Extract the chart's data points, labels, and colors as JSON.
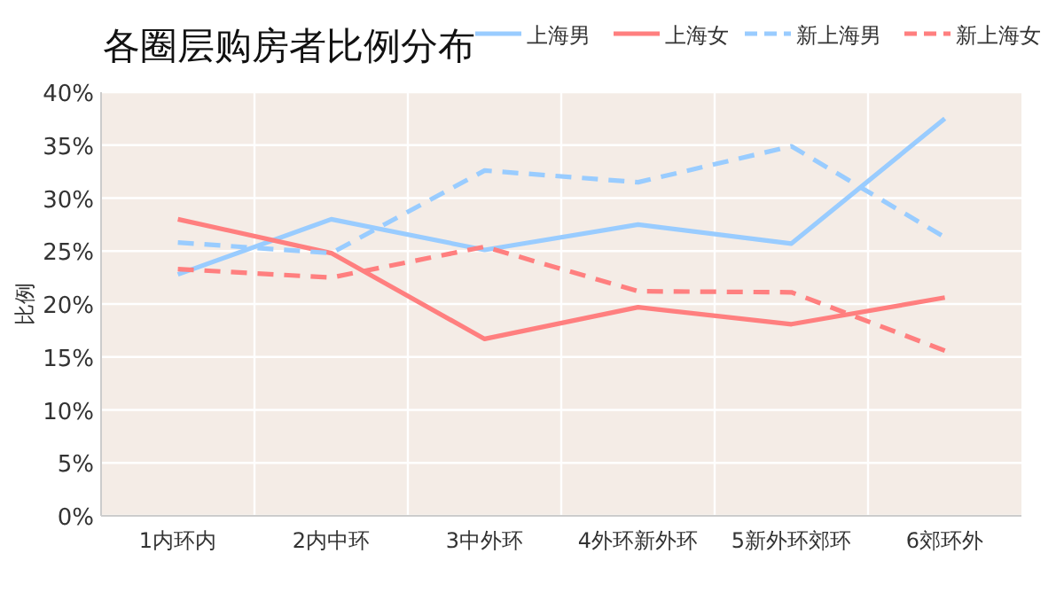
{
  "chart_data": {
    "type": "line",
    "title": "各圈层购房者比例分布",
    "ylabel": "比例",
    "categories": [
      "1内环内",
      "2内中环",
      "3中外环",
      "4外环新外环",
      "5新外环郊环",
      "6郊环外"
    ],
    "series": [
      {
        "name": "上海男",
        "color": "#99ccff",
        "line_style": "solid",
        "values": [
          22.8,
          28.0,
          25.1,
          27.5,
          25.7,
          37.5
        ]
      },
      {
        "name": "上海女",
        "color": "#ff7f7f",
        "line_style": "solid",
        "values": [
          28.0,
          24.8,
          16.7,
          19.7,
          18.1,
          20.6
        ]
      },
      {
        "name": "新上海男",
        "color": "#99ccff",
        "line_style": "dashed",
        "values": [
          25.8,
          24.8,
          32.6,
          31.5,
          34.9,
          26.3
        ]
      },
      {
        "name": "新上海女",
        "color": "#ff7f7f",
        "line_style": "dashed",
        "values": [
          23.3,
          22.5,
          25.4,
          21.2,
          21.1,
          15.6
        ]
      }
    ],
    "ylim": [
      0,
      40
    ],
    "yticks": [
      {
        "value": 0,
        "label": "0%"
      },
      {
        "value": 5,
        "label": "5%"
      },
      {
        "value": 10,
        "label": "10%"
      },
      {
        "value": 15,
        "label": "15%"
      },
      {
        "value": 20,
        "label": "20%"
      },
      {
        "value": 25,
        "label": "25%"
      },
      {
        "value": 30,
        "label": "30%"
      },
      {
        "value": 35,
        "label": "35%"
      },
      {
        "value": 40,
        "label": "40%"
      }
    ],
    "grid": true,
    "legend": "top right",
    "marker": "none"
  }
}
